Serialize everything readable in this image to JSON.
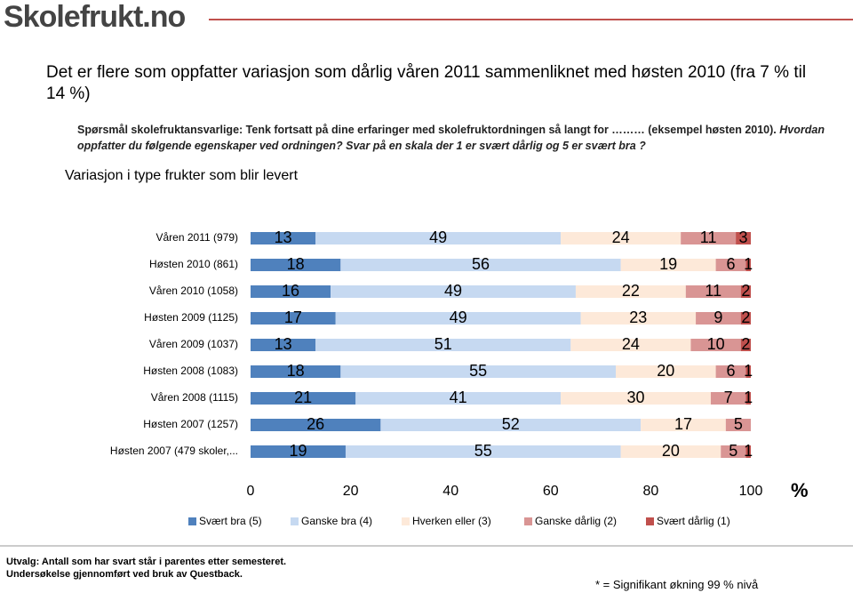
{
  "header": {
    "logo": "Skolefrukt.no",
    "headline": "Det er flere som oppfatter variasjon som dårlig våren 2011 sammenliknet med høsten 2010  (fra 7 % til 14 %)"
  },
  "question": {
    "lead": "Spørsmål skolefruktansvarlige: Tenk fortsatt på dine erfaringer med skolefruktordningen så langt for ……… (eksempel høsten 2010).",
    "text": "Hvordan oppfatter du følgende egenskaper ved ordningen? Svar på en skala der 1 er svært dårlig og 5 er svært bra ?"
  },
  "chart_data": {
    "type": "stacked-bar-horizontal",
    "title": "Variasjon i type frukter som blir levert",
    "categories": [
      "Våren 2011 (979)",
      "Høsten 2010 (861)",
      "Våren 2010 (1058)",
      "Høsten 2009 (1125)",
      "Våren 2009 (1037)",
      "Høsten 2008 (1083)",
      "Våren 2008 (1115)",
      "Høsten 2007 (1257)",
      "Høsten 2007 (479 skoler,..."
    ],
    "series": [
      {
        "name": "Svært bra (5)",
        "color": "#4f81bd",
        "values": [
          13,
          18,
          16,
          17,
          13,
          18,
          21,
          26,
          19
        ]
      },
      {
        "name": "Ganske bra (4)",
        "color": "#c6d9f1",
        "values": [
          49,
          56,
          49,
          49,
          51,
          55,
          41,
          52,
          55
        ]
      },
      {
        "name": "Hverken eller (3)",
        "color": "#fde9d9",
        "values": [
          24,
          19,
          22,
          23,
          24,
          20,
          30,
          17,
          20
        ]
      },
      {
        "name": "Ganske dårlig (2)",
        "color": "#d99594",
        "values": [
          11,
          6,
          11,
          9,
          10,
          6,
          7,
          5,
          5
        ]
      },
      {
        "name": "Svært dårlig (1)",
        "color": "#c0504d",
        "values": [
          3,
          1,
          2,
          2,
          2,
          1,
          1,
          null,
          1
        ]
      }
    ],
    "xlim": [
      0,
      100
    ],
    "xticks": [
      0,
      20,
      40,
      60,
      80,
      100
    ],
    "xlabel": "%",
    "legend": "bottom"
  },
  "footer": {
    "sample": "Utvalg:  Antall som har svart står i parentes etter semesteret.",
    "method": "Undersøkelse gjennomført ved bruk av Questback.",
    "note": "* = Signifikant økning 99 % nivå"
  }
}
